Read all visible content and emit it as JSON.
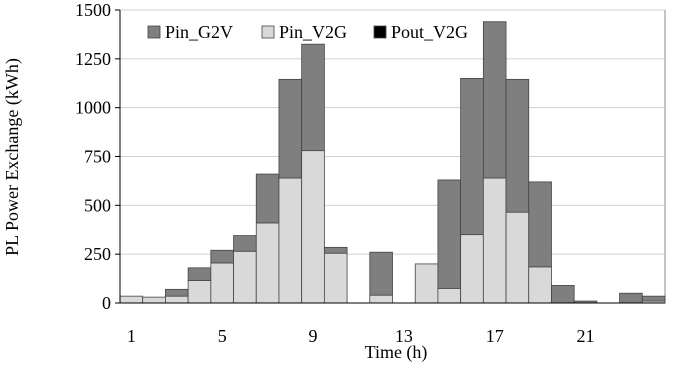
{
  "chart_data": {
    "type": "bar",
    "stacked": true,
    "xlabel": "Time (h)",
    "ylabel": "PL Power Exchange (kWh)",
    "ylim": [
      0,
      1500
    ],
    "yticks": [
      0,
      250,
      500,
      750,
      1000,
      1250,
      1500
    ],
    "xtick_labels": [
      "1",
      "5",
      "9",
      "13",
      "17",
      "21"
    ],
    "grid": true,
    "legend_position": "top-left",
    "categories": [
      1,
      2,
      3,
      4,
      5,
      6,
      7,
      8,
      9,
      10,
      11,
      12,
      13,
      14,
      15,
      16,
      17,
      18,
      19,
      20,
      21,
      22,
      23,
      24
    ],
    "series": [
      {
        "name": "Pin_V2G",
        "color": "#d9d9d9",
        "values": [
          35,
          30,
          35,
          115,
          205,
          265,
          410,
          640,
          780,
          255,
          0,
          40,
          0,
          200,
          75,
          350,
          640,
          465,
          185,
          0,
          0,
          0,
          0,
          10
        ]
      },
      {
        "name": "Pin_G2V",
        "color": "#7f7f7f",
        "values": [
          0,
          0,
          35,
          65,
          65,
          80,
          250,
          505,
          545,
          30,
          0,
          220,
          0,
          0,
          555,
          800,
          800,
          680,
          435,
          90,
          10,
          0,
          50,
          25
        ]
      },
      {
        "name": "Pout_V2G",
        "color": "#000000",
        "values": [
          0,
          0,
          0,
          0,
          0,
          0,
          0,
          0,
          0,
          0,
          0,
          0,
          0,
          0,
          0,
          0,
          0,
          0,
          0,
          0,
          0,
          0,
          0,
          0
        ]
      }
    ],
    "legend_order": [
      "Pin_G2V",
      "Pin_V2G",
      "Pout_V2G"
    ]
  }
}
